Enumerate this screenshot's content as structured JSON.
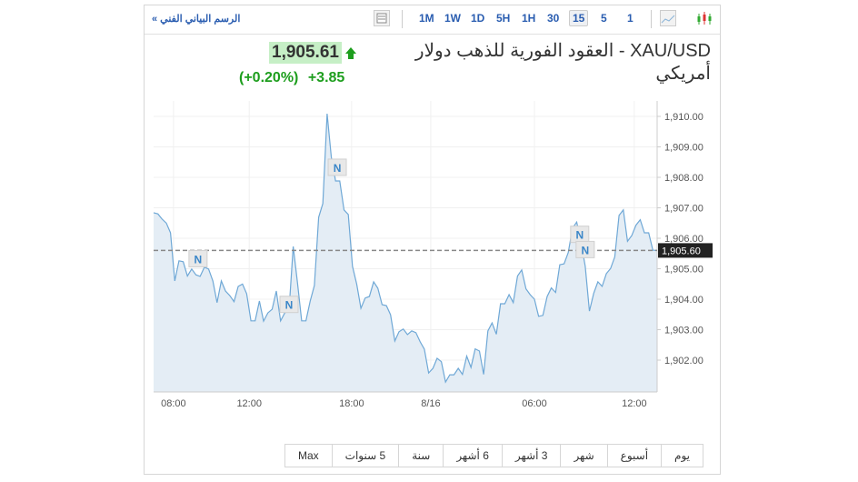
{
  "toolbar": {
    "breadcrumb": "الرسم البياني الفني »",
    "intervals": [
      "1M",
      "1W",
      "1D",
      "5H",
      "1H",
      "30",
      "15",
      "5",
      "1"
    ],
    "active_interval": "15",
    "icons": [
      "layout-icon",
      "area-chart-icon",
      "candlestick-icon"
    ]
  },
  "header": {
    "title": "XAU/USD - العقود الفورية للذهب دولار أمريكي",
    "price": "1,905.61",
    "change": "+3.85",
    "change_pct": "(+0.20%)",
    "direction": "up",
    "up_color": "#1e9e1e"
  },
  "chart_data": {
    "type": "area",
    "ylim": [
      1901,
      1910.3
    ],
    "yticks": [
      "1,902.00",
      "1,903.00",
      "1,904.00",
      "1,905.00",
      "1,906.00",
      "1,907.00",
      "1,908.00",
      "1,909.00",
      "1,910.00"
    ],
    "ytick_values": [
      1902,
      1903,
      1904,
      1905,
      1906,
      1907,
      1908,
      1909,
      1910
    ],
    "xticks": [
      {
        "label": "08:00",
        "index": 4.7
      },
      {
        "label": "12:00",
        "index": 22.6
      },
      {
        "label": "18:00",
        "index": 46.8
      },
      {
        "label": "8/16",
        "index": 65.5
      },
      {
        "label": "06:00",
        "index": 90
      },
      {
        "label": "12:00",
        "index": 113.6
      }
    ],
    "last_price_label": "1,905.60",
    "last_price": 1905.6,
    "line_color": "#6fa8d6",
    "fill_color": "#e4edf5",
    "news_markers": [
      {
        "label": "N",
        "index": 10.5,
        "price": 1905.3
      },
      {
        "label": "N",
        "index": 32,
        "price": 1903.8
      },
      {
        "label": "N",
        "index": 43.4,
        "price": 1908.3
      },
      {
        "label": "N",
        "index": 100.7,
        "price": 1906.1
      },
      {
        "label": "N",
        "index": 102,
        "price": 1905.6
      }
    ],
    "values": [
      1906.84,
      1906.8,
      1906.63,
      1906.5,
      1906.18,
      1904.6,
      1905.26,
      1905.23,
      1904.76,
      1904.99,
      1904.8,
      1904.75,
      1905.05,
      1904.99,
      1904.6,
      1903.89,
      1904.6,
      1904.27,
      1904.12,
      1903.92,
      1904.42,
      1904.5,
      1904.18,
      1903.29,
      1903.29,
      1903.94,
      1903.28,
      1903.55,
      1903.67,
      1904.27,
      1903.29,
      1903.55,
      1903.64,
      1905.73,
      1904.54,
      1903.29,
      1903.29,
      1903.94,
      1904.45,
      1906.69,
      1907.14,
      1910.09,
      1908.67,
      1907.88,
      1907.88,
      1906.93,
      1906.78,
      1905.08,
      1904.49,
      1903.7,
      1904.04,
      1904.09,
      1904.57,
      1904.36,
      1903.82,
      1903.79,
      1903.49,
      1902.63,
      1902.93,
      1903.02,
      1902.84,
      1902.96,
      1902.9,
      1902.6,
      1902.36,
      1901.58,
      1901.73,
      1902.06,
      1901.95,
      1901.28,
      1901.52,
      1901.52,
      1901.73,
      1901.53,
      1902.13,
      1901.76,
      1902.37,
      1902.3,
      1901.53,
      1902.96,
      1903.22,
      1902.85,
      1903.85,
      1903.85,
      1904.15,
      1903.89,
      1904.76,
      1904.96,
      1904.34,
      1904.15,
      1904.0,
      1903.44,
      1903.47,
      1904.09,
      1904.37,
      1904.22,
      1905.13,
      1905.16,
      1905.53,
      1906.33,
      1906.53,
      1905.88,
      1905.08,
      1903.61,
      1904.19,
      1904.57,
      1904.42,
      1904.84,
      1905.01,
      1905.39,
      1906.75,
      1906.93,
      1905.9,
      1906.09,
      1906.43,
      1906.61,
      1906.18,
      1906.18,
      1905.61,
      1905.6
    ]
  },
  "ranges": [
    "يوم",
    "أسبوع",
    "شهر",
    "3 أشهر",
    "6 أشهر",
    "سنة",
    "5 سنوات",
    "Max"
  ]
}
